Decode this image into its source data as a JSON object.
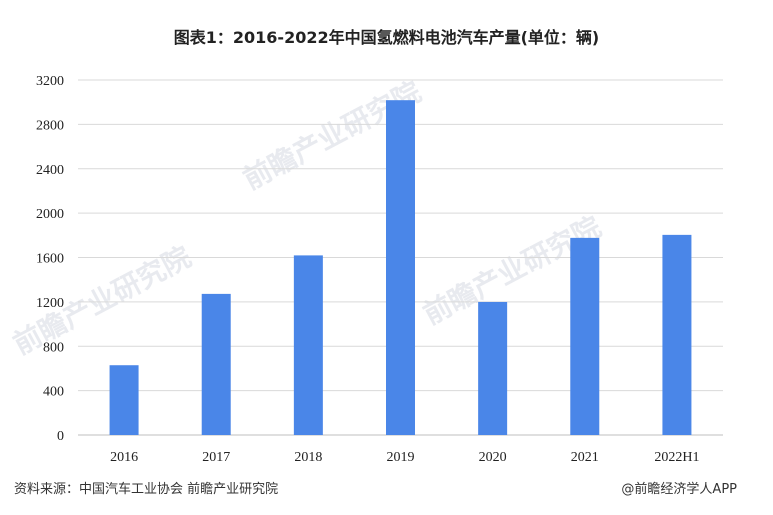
{
  "chart_data": {
    "type": "bar",
    "title": "图表1：2016-2022年中国氢燃料电池汽车产量(单位：辆)",
    "categories": [
      "2016",
      "2017",
      "2018",
      "2019",
      "2020",
      "2021",
      "2022H1"
    ],
    "values": [
      629,
      1272,
      1619,
      3018,
      1199,
      1777,
      1804
    ],
    "yticks": [
      0,
      400,
      800,
      1200,
      1600,
      2000,
      2400,
      2800,
      3200
    ],
    "ylim": [
      0,
      3200
    ],
    "grid": true,
    "bar_color": "#4a86e8"
  },
  "footer": {
    "source": "资料来源：中国汽车工业协会 前瞻产业研究院",
    "brand": "@前瞻经济学人APP"
  },
  "watermark": {
    "text": "前瞻产业研究院"
  }
}
